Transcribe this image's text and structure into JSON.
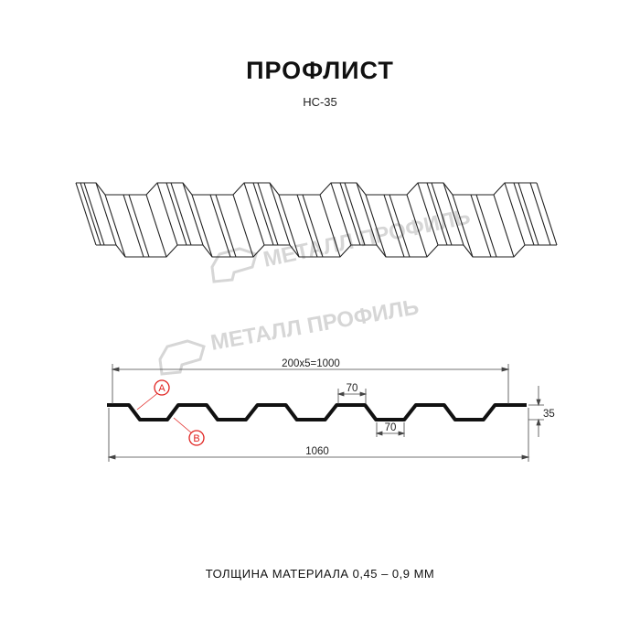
{
  "title": "ПРОФЛИСТ",
  "subtitle": "НС-35",
  "watermark": "МЕТАЛЛ ПРОФИЛЬ",
  "dimensions": {
    "pitch_total": "200x5=1000",
    "top_width": "70",
    "bottom_width": "70",
    "height": "35",
    "total_width": "1060"
  },
  "markers": {
    "a": "A",
    "b": "B"
  },
  "footer": "ТОЛЩИНА МАТЕРИАЛА 0,45 – 0,9 ММ",
  "colors": {
    "line": "#1a1a1a",
    "marker": "#e0221f",
    "watermark": "#d6d6d6"
  }
}
